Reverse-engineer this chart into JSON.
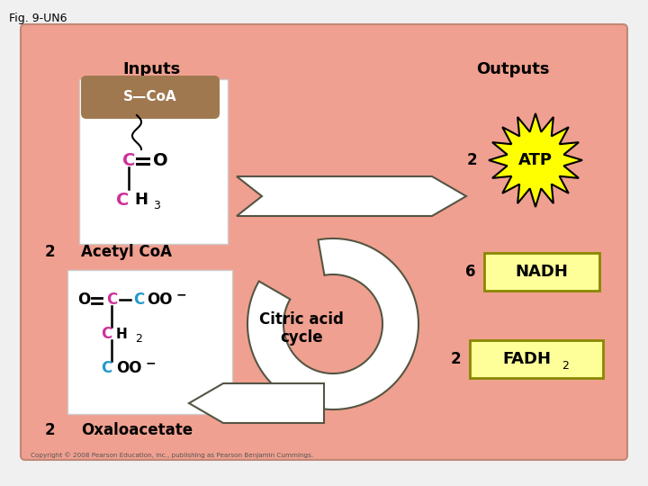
{
  "fig_label": "Fig. 9-UN6",
  "bg_outer": "#F0F0F0",
  "bg_panel": "#F0A090",
  "coa_bg": "#A07850",
  "c_color": "#CC3399",
  "cyan_color": "#2299CC",
  "atp_color": "#FFFF00",
  "nadh_fadh_bg": "#FFFF99",
  "nadh_fadh_border": "#888800",
  "white": "#FFFFFF",
  "black": "#000000",
  "title_inputs": "Inputs",
  "title_outputs": "Outputs",
  "acetyl_num": "2",
  "acetyl_text": "Acetyl CoA",
  "oxalo_num": "2",
  "oxalo_text": "Oxaloacetate",
  "atp_num": "2",
  "atp_text": "ATP",
  "nadh_num": "6",
  "nadh_text": "NADH",
  "fadh2_num": "2",
  "fadh2_text": "FADH",
  "fadh2_sub": "2",
  "cycle_text": "Citric acid\ncycle",
  "copyright": "Copyright © 2008 Pearson Education, Inc., publishing as Pearson Benjamin Cummings."
}
